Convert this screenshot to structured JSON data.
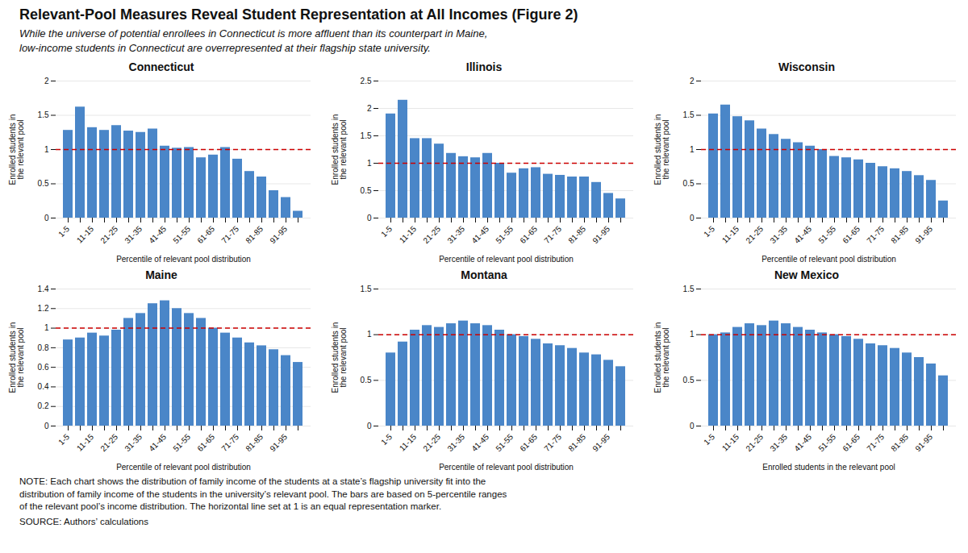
{
  "title": "Relevant-Pool Measures Reveal Student Representation at All Incomes (Figure 2)",
  "subtitle": "While the universe of potential enrollees in Connecticut is more affluent than its counterpart in Maine,\nlow-income students in Connecticut are overrepresented at their flagship state university.",
  "annotations": [
    "NOTE: Each chart shows the distribution of family income of the students at a state’s flagship university fit into the\ndistribution of family income of the students in the university’s relevant pool. The bars are based on 5-percentile ranges\nof the relevant pool’s income distribution. The horizontal line set at 1 is an equal representation marker.",
    "SOURCE: Authors’ calculations"
  ],
  "chart_data": [
    {
      "type": "bar",
      "title": "Connecticut",
      "categories": [
        "1-5",
        null,
        "11-15",
        null,
        "21-25",
        null,
        "31-35",
        null,
        "41-45",
        null,
        "51-55",
        null,
        "61-65",
        null,
        "71-75",
        null,
        "81-85",
        null,
        "91-95",
        null
      ],
      "values": [
        1.28,
        1.62,
        1.32,
        1.28,
        1.35,
        1.27,
        1.25,
        1.3,
        1.05,
        1.02,
        1.03,
        0.88,
        0.92,
        1.03,
        0.86,
        0.68,
        0.6,
        0.4,
        0.3,
        0.1
      ],
      "color": "#4a86c8",
      "ylim": [
        0,
        2.0
      ],
      "yticks": [
        0,
        0.5,
        1,
        1.5,
        2
      ],
      "grid": true,
      "ylabel": "Enrolled students in\nthe relevant pool",
      "xlabel": "Percentile of relevant pool distribution",
      "annotations": [
        {
          "y": 1,
          "color": "#cc0000",
          "line_style": "dashed"
        }
      ]
    },
    {
      "type": "bar",
      "title": "Illinois",
      "categories": [
        "1-5",
        null,
        "11-15",
        null,
        "21-25",
        null,
        "31-35",
        null,
        "41-45",
        null,
        "51-55",
        null,
        "61-65",
        null,
        "71-75",
        null,
        "81-85",
        null,
        "91-95",
        null
      ],
      "values": [
        1.9,
        2.15,
        1.45,
        1.45,
        1.35,
        1.18,
        1.12,
        1.1,
        1.18,
        1.0,
        0.82,
        0.9,
        0.92,
        0.8,
        0.78,
        0.75,
        0.75,
        0.65,
        0.45,
        0.35
      ],
      "color": "#4a86c8",
      "ylim": [
        0,
        2.5
      ],
      "yticks": [
        0,
        0.5,
        1,
        1.5,
        2,
        2.5
      ],
      "grid": true,
      "ylabel": "Enrolled students in\nthe relevant pool",
      "xlabel": "Percentile of relevant pool distribution",
      "annotations": [
        {
          "y": 1,
          "color": "#cc0000",
          "line_style": "dashed"
        }
      ]
    },
    {
      "type": "bar",
      "title": "Wisconsin",
      "categories": [
        "1-5",
        null,
        "11-15",
        null,
        "21-25",
        null,
        "31-35",
        null,
        "41-45",
        null,
        "51-55",
        null,
        "61-65",
        null,
        "71-75",
        null,
        "81-85",
        null,
        "91-95",
        null
      ],
      "values": [
        1.52,
        1.65,
        1.48,
        1.42,
        1.3,
        1.22,
        1.15,
        1.1,
        1.05,
        1.0,
        0.9,
        0.88,
        0.85,
        0.8,
        0.75,
        0.72,
        0.68,
        0.62,
        0.55,
        0.25
      ],
      "color": "#4a86c8",
      "ylim": [
        0,
        2.0
      ],
      "yticks": [
        0,
        0.5,
        1,
        1.5,
        2
      ],
      "grid": true,
      "ylabel": "Enrolled students in\nthe relevant pool",
      "xlabel": "Percentile of relevant pool distribution",
      "annotations": [
        {
          "y": 1,
          "color": "#cc0000",
          "line_style": "dashed"
        }
      ]
    },
    {
      "type": "bar",
      "title": "Maine",
      "categories": [
        "1-5",
        null,
        "11-15",
        null,
        "21-25",
        null,
        "31-35",
        null,
        "41-45",
        null,
        "51-55",
        null,
        "61-65",
        null,
        "71-75",
        null,
        "81-85",
        null,
        "91-95",
        null
      ],
      "values": [
        0.88,
        0.9,
        0.95,
        0.92,
        0.98,
        1.1,
        1.15,
        1.25,
        1.28,
        1.2,
        1.15,
        1.1,
        1.0,
        0.95,
        0.9,
        0.85,
        0.82,
        0.78,
        0.72,
        0.65
      ],
      "color": "#4a86c8",
      "ylim": [
        0,
        1.4
      ],
      "yticks": [
        0,
        0.2,
        0.4,
        0.6,
        0.8,
        1,
        1.2,
        1.4
      ],
      "grid": true,
      "ylabel": "Enrolled students in\nthe relevant pool",
      "xlabel": "Percentile of relevant pool distribution",
      "annotations": [
        {
          "y": 1,
          "color": "#cc0000",
          "line_style": "dashed"
        }
      ]
    },
    {
      "type": "bar",
      "title": "Montana",
      "categories": [
        "1-5",
        null,
        "11-15",
        null,
        "21-25",
        null,
        "31-35",
        null,
        "41-45",
        null,
        "51-55",
        null,
        "61-65",
        null,
        "71-75",
        null,
        "81-85",
        null,
        "91-95",
        null
      ],
      "values": [
        0.8,
        0.92,
        1.05,
        1.1,
        1.08,
        1.12,
        1.15,
        1.12,
        1.1,
        1.05,
        1.0,
        0.98,
        0.95,
        0.9,
        0.88,
        0.85,
        0.8,
        0.78,
        0.72,
        0.65
      ],
      "color": "#4a86c8",
      "ylim": [
        0,
        1.5
      ],
      "yticks": [
        0,
        0.5,
        1,
        1.5
      ],
      "grid": true,
      "ylabel": "Enrolled students in\nthe relevant pool",
      "xlabel": "Percentile of relevant pool distribution",
      "annotations": [
        {
          "y": 1,
          "color": "#cc0000",
          "line_style": "dashed"
        }
      ]
    },
    {
      "type": "bar",
      "title": "New Mexico",
      "categories": [
        "1-5",
        null,
        "11-15",
        null,
        "21-25",
        null,
        "31-35",
        null,
        "41-45",
        null,
        "51-55",
        null,
        "61-65",
        null,
        "71-75",
        null,
        "81-85",
        null,
        "91-95",
        null
      ],
      "values": [
        1.0,
        1.02,
        1.08,
        1.12,
        1.1,
        1.15,
        1.12,
        1.08,
        1.05,
        1.02,
        1.0,
        0.98,
        0.95,
        0.9,
        0.88,
        0.85,
        0.8,
        0.75,
        0.68,
        0.55
      ],
      "color": "#4a86c8",
      "ylim": [
        0,
        1.5
      ],
      "yticks": [
        0,
        0.5,
        1,
        1.5
      ],
      "grid": true,
      "ylabel": "Enrolled students in\nthe relevant pool",
      "xlabel": "Enrolled students in the relevant pool",
      "annotations": [
        {
          "y": 1,
          "color": "#cc0000",
          "line_style": "dashed"
        }
      ]
    }
  ]
}
